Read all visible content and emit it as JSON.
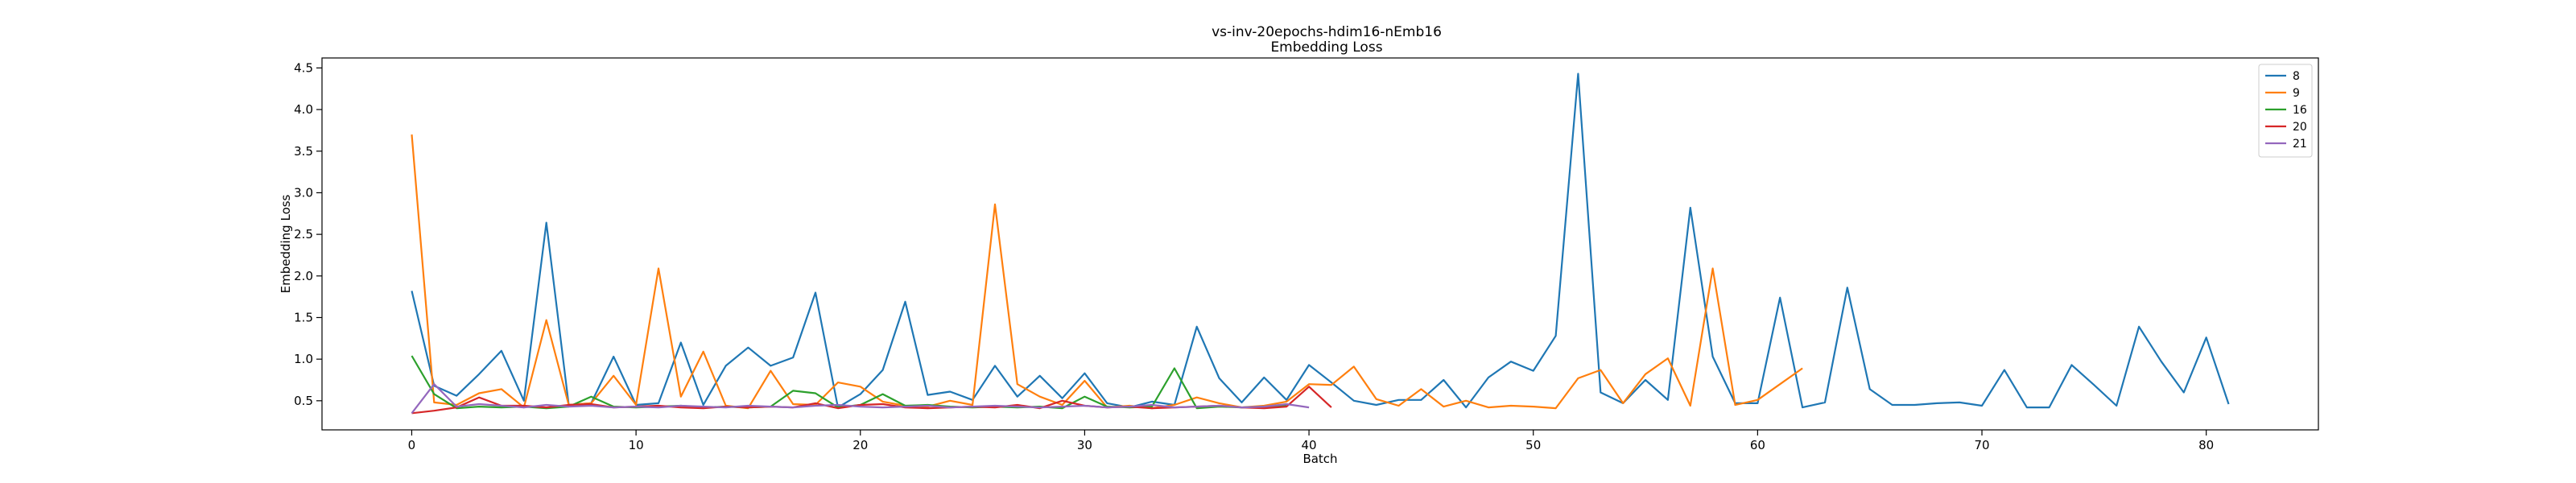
{
  "chart_data": {
    "type": "line",
    "title": "vs-inv-20epochs-hdim16-nEmb16",
    "subtitle": "Embedding Loss",
    "xlabel": "Batch",
    "ylabel": "Embedding Loss",
    "xlim": [
      -4,
      85
    ],
    "ylim": [
      0.15,
      4.62
    ],
    "xticks": [
      0,
      10,
      20,
      30,
      40,
      50,
      60,
      70,
      80
    ],
    "yticks": [
      0.5,
      1.0,
      1.5,
      2.0,
      2.5,
      3.0,
      3.5,
      4.0,
      4.5
    ],
    "grid": false,
    "legend": "top-right",
    "series": [
      {
        "name": "8",
        "color": "#1f77b4",
        "values": [
          1.82,
          0.68,
          0.56,
          0.82,
          1.1,
          0.5,
          2.64,
          0.45,
          0.47,
          1.03,
          0.45,
          0.47,
          1.2,
          0.45,
          0.92,
          1.14,
          0.92,
          1.02,
          1.8,
          0.42,
          0.58,
          0.87,
          1.69,
          0.57,
          0.61,
          0.51,
          0.92,
          0.55,
          0.8,
          0.53,
          0.83,
          0.47,
          0.42,
          0.49,
          0.45,
          1.39,
          0.77,
          0.48,
          0.78,
          0.51,
          0.93,
          0.72,
          0.5,
          0.45,
          0.51,
          0.51,
          0.75,
          0.42,
          0.78,
          0.97,
          0.86,
          1.28,
          4.43,
          0.6,
          0.47,
          0.75,
          0.51,
          2.82,
          1.03,
          0.47,
          0.47,
          1.74,
          0.42,
          0.48,
          1.86,
          0.64,
          0.45,
          0.45,
          0.47,
          0.48,
          0.44,
          0.87,
          0.42,
          0.42,
          0.93,
          0.69,
          0.44,
          1.39,
          0.97,
          0.6,
          1.26,
          0.46
        ]
      },
      {
        "name": "9",
        "color": "#ff7f0e",
        "values": [
          3.7,
          0.48,
          0.45,
          0.59,
          0.64,
          0.42,
          1.47,
          0.45,
          0.47,
          0.8,
          0.45,
          2.09,
          0.55,
          1.09,
          0.44,
          0.41,
          0.86,
          0.46,
          0.45,
          0.72,
          0.67,
          0.49,
          0.44,
          0.43,
          0.5,
          0.45,
          2.86,
          0.7,
          0.55,
          0.45,
          0.74,
          0.42,
          0.44,
          0.41,
          0.45,
          0.54,
          0.47,
          0.42,
          0.44,
          0.49,
          0.7,
          0.69,
          0.91,
          0.52,
          0.44,
          0.64,
          0.43,
          0.5,
          0.42,
          0.44,
          0.43,
          0.41,
          0.77,
          0.87,
          0.47,
          0.82,
          1.01,
          0.44,
          2.09,
          0.45,
          0.51,
          0.7,
          0.89
        ]
      },
      {
        "name": "16",
        "color": "#2ca02c",
        "values": [
          1.04,
          0.58,
          0.41,
          0.43,
          0.42,
          0.43,
          0.41,
          0.43,
          0.55,
          0.43,
          0.42,
          0.43,
          0.44,
          0.42,
          0.43,
          0.42,
          0.43,
          0.62,
          0.59,
          0.42,
          0.45,
          0.58,
          0.44,
          0.45,
          0.43,
          0.42,
          0.43,
          0.42,
          0.43,
          0.41,
          0.55,
          0.43,
          0.42,
          0.43,
          0.89,
          0.41,
          0.43,
          0.42,
          0.43,
          0.44
        ]
      },
      {
        "name": "20",
        "color": "#d62728",
        "values": [
          0.35,
          0.38,
          0.42,
          0.54,
          0.44,
          0.44,
          0.42,
          0.45,
          0.46,
          0.42,
          0.43,
          0.44,
          0.42,
          0.41,
          0.43,
          0.42,
          0.43,
          0.42,
          0.47,
          0.41,
          0.45,
          0.46,
          0.42,
          0.41,
          0.42,
          0.43,
          0.42,
          0.45,
          0.41,
          0.5,
          0.44,
          0.42,
          0.43,
          0.41,
          0.42,
          0.43,
          0.44,
          0.42,
          0.41,
          0.43,
          0.67,
          0.42
        ]
      },
      {
        "name": "21",
        "color": "#9467bd",
        "values": [
          0.35,
          0.7,
          0.43,
          0.46,
          0.44,
          0.42,
          0.45,
          0.43,
          0.44,
          0.42,
          0.43,
          0.42,
          0.44,
          0.43,
          0.42,
          0.44,
          0.43,
          0.42,
          0.44,
          0.45,
          0.43,
          0.42,
          0.43,
          0.44,
          0.42,
          0.43,
          0.44,
          0.43,
          0.42,
          0.43,
          0.44,
          0.42,
          0.43,
          0.45,
          0.42,
          0.43,
          0.44,
          0.42,
          0.43,
          0.46,
          0.42
        ]
      }
    ]
  }
}
